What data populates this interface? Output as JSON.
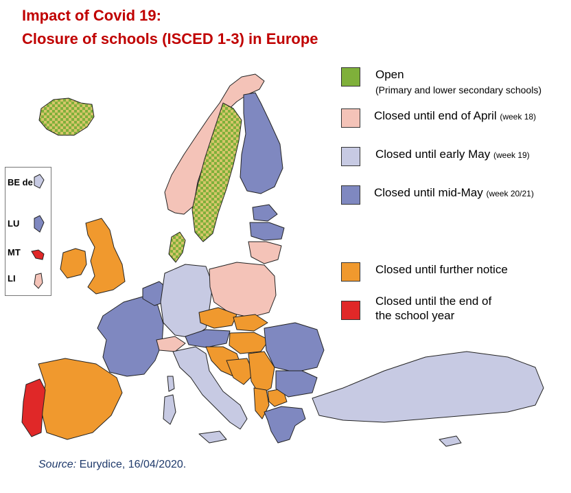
{
  "title": {
    "line1": "Impact of Covid 19:",
    "line2": "Closure of schools (ISCED 1-3) in Europe"
  },
  "legend": [
    {
      "key": "open",
      "label": "Open",
      "note": "(Primary and lower secondary schools)",
      "color": "#7fb03a",
      "pattern": "solid-green"
    },
    {
      "key": "april",
      "label": "Closed until end of April",
      "note": "(week 18)",
      "color": "#f4c3b8"
    },
    {
      "key": "early_may",
      "label": "Closed until early May",
      "note": "(week 19)",
      "color": "#c7cae3"
    },
    {
      "key": "mid_may",
      "label": "Closed until mid-May",
      "note": "(week 20/21)",
      "color": "#7f88c0"
    },
    {
      "key": "further",
      "label": "Closed until further notice",
      "note": "",
      "color": "#f0992e"
    },
    {
      "key": "year_end",
      "label": "Closed until the end of",
      "label2": "the school year",
      "note": "",
      "color": "#e02828"
    }
  ],
  "inset": {
    "items": [
      {
        "label": "BE de",
        "color": "#c7cae3"
      },
      {
        "label": "LU",
        "color": "#7f88c0"
      },
      {
        "label": "MT",
        "color": "#e02828"
      },
      {
        "label": "LI",
        "color": "#f4c3b8"
      }
    ]
  },
  "source": {
    "prefix": "Source:",
    "text": " Eurydice, 16/04/2020."
  },
  "colors": {
    "title": "#c00000",
    "open": "#7fb03a",
    "checker": "#d6c56a",
    "april": "#f4c3b8",
    "early_may": "#c7cae3",
    "mid_may": "#7f88c0",
    "further": "#f0992e",
    "year_end": "#e02828",
    "outside": "#ffffff"
  }
}
